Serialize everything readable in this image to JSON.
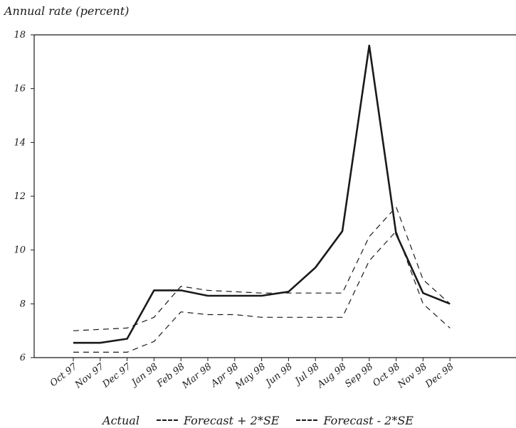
{
  "chart_data": {
    "type": "line",
    "title": "",
    "ylabel": "Annual rate (percent)",
    "xlabel": "",
    "categories": [
      "Oct 97",
      "Nov 97",
      "Dec 97",
      "Jan 98",
      "Feb 98",
      "Mar 98",
      "Apr 98",
      "May 98",
      "Jun 98",
      "Jul 98",
      "Aug 98",
      "Sep 98",
      "Oct 98",
      "Nov 98",
      "Dec 98"
    ],
    "ylim": [
      6,
      18
    ],
    "yticks": [
      "6",
      "8",
      "10",
      "12",
      "14",
      "16",
      "18"
    ],
    "grid": false,
    "legend_position": "bottom",
    "series": [
      {
        "name": "Actual",
        "style": "solid",
        "values": [
          6.55,
          6.55,
          6.7,
          8.5,
          8.5,
          8.3,
          8.3,
          8.3,
          8.45,
          9.35,
          10.7,
          17.6,
          10.6,
          8.4,
          8.0
        ]
      },
      {
        "name": "Forecast + 2*SE",
        "style": "dashed",
        "values": [
          7.0,
          7.05,
          7.1,
          7.5,
          8.65,
          8.5,
          8.45,
          8.4,
          8.4,
          8.4,
          8.4,
          10.5,
          11.6,
          8.9,
          8.0
        ]
      },
      {
        "name": "Forecast - 2*SE",
        "style": "dashed",
        "values": [
          6.2,
          6.2,
          6.2,
          6.6,
          7.7,
          7.6,
          7.6,
          7.5,
          7.5,
          7.5,
          7.5,
          9.6,
          10.7,
          8.0,
          7.1
        ]
      }
    ]
  }
}
